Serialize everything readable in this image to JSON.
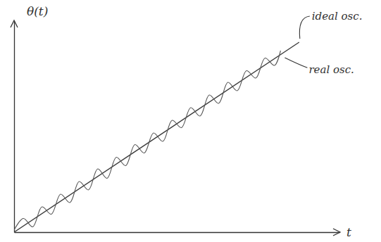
{
  "chart_data": {
    "type": "line",
    "x_label": "t",
    "y_label": "θ(t)",
    "xlim": [
      0,
      10.5
    ],
    "ylim": [
      0,
      10
    ],
    "tick_labels": false,
    "grid": false,
    "series": [
      {
        "name": "ideal osc.",
        "color": "#3a3a3a",
        "line_style": "solid",
        "x": [
          0,
          9.2
        ],
        "values": [
          0,
          9.0
        ]
      },
      {
        "name": "real osc.",
        "color": "#555555",
        "line_style": "solid",
        "x": [
          0,
          0.3,
          0.6,
          0.9,
          1.2,
          1.5,
          1.8,
          2.1,
          2.4,
          2.7,
          3.0,
          3.3,
          3.6,
          3.9,
          4.2,
          4.5,
          4.8,
          5.1,
          5.4,
          5.7,
          6.0,
          6.3,
          6.6,
          6.9,
          7.2,
          7.5,
          7.8,
          8.1,
          8.4,
          8.6
        ],
        "values": [
          0.1,
          0.65,
          0.25,
          1.2,
          0.85,
          1.8,
          1.4,
          2.4,
          2.0,
          3.0,
          2.55,
          3.55,
          3.15,
          4.15,
          3.75,
          4.7,
          4.3,
          5.3,
          4.95,
          5.9,
          5.5,
          6.5,
          6.1,
          7.1,
          6.7,
          7.65,
          7.3,
          8.25,
          7.9,
          8.6
        ]
      }
    ]
  }
}
